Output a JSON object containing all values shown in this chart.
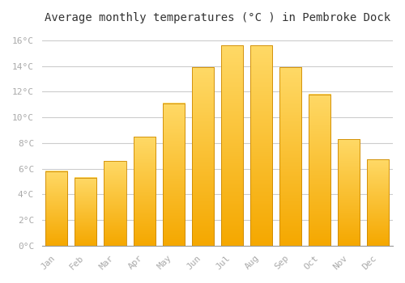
{
  "title": "Average monthly temperatures (°C ) in Pembroke Dock",
  "months": [
    "Jan",
    "Feb",
    "Mar",
    "Apr",
    "May",
    "Jun",
    "Jul",
    "Aug",
    "Sep",
    "Oct",
    "Nov",
    "Dec"
  ],
  "values": [
    5.8,
    5.3,
    6.6,
    8.5,
    11.1,
    13.9,
    15.6,
    15.6,
    13.9,
    11.8,
    8.3,
    6.7
  ],
  "grad_bottom": "#F5A800",
  "grad_top": "#FFD966",
  "bar_edge_color": "#CC8800",
  "background_color": "#FFFFFF",
  "plot_bg_color": "#FFFFFF",
  "grid_color": "#CCCCCC",
  "ytick_labels": [
    "0°C",
    "2°C",
    "4°C",
    "6°C",
    "8°C",
    "10°C",
    "12°C",
    "14°C",
    "16°C"
  ],
  "ytick_values": [
    0,
    2,
    4,
    6,
    8,
    10,
    12,
    14,
    16
  ],
  "ylim": [
    0,
    16.8
  ],
  "title_fontsize": 10,
  "tick_fontsize": 8,
  "tick_color": "#AAAAAA",
  "font_family": "monospace",
  "bar_width": 0.75
}
